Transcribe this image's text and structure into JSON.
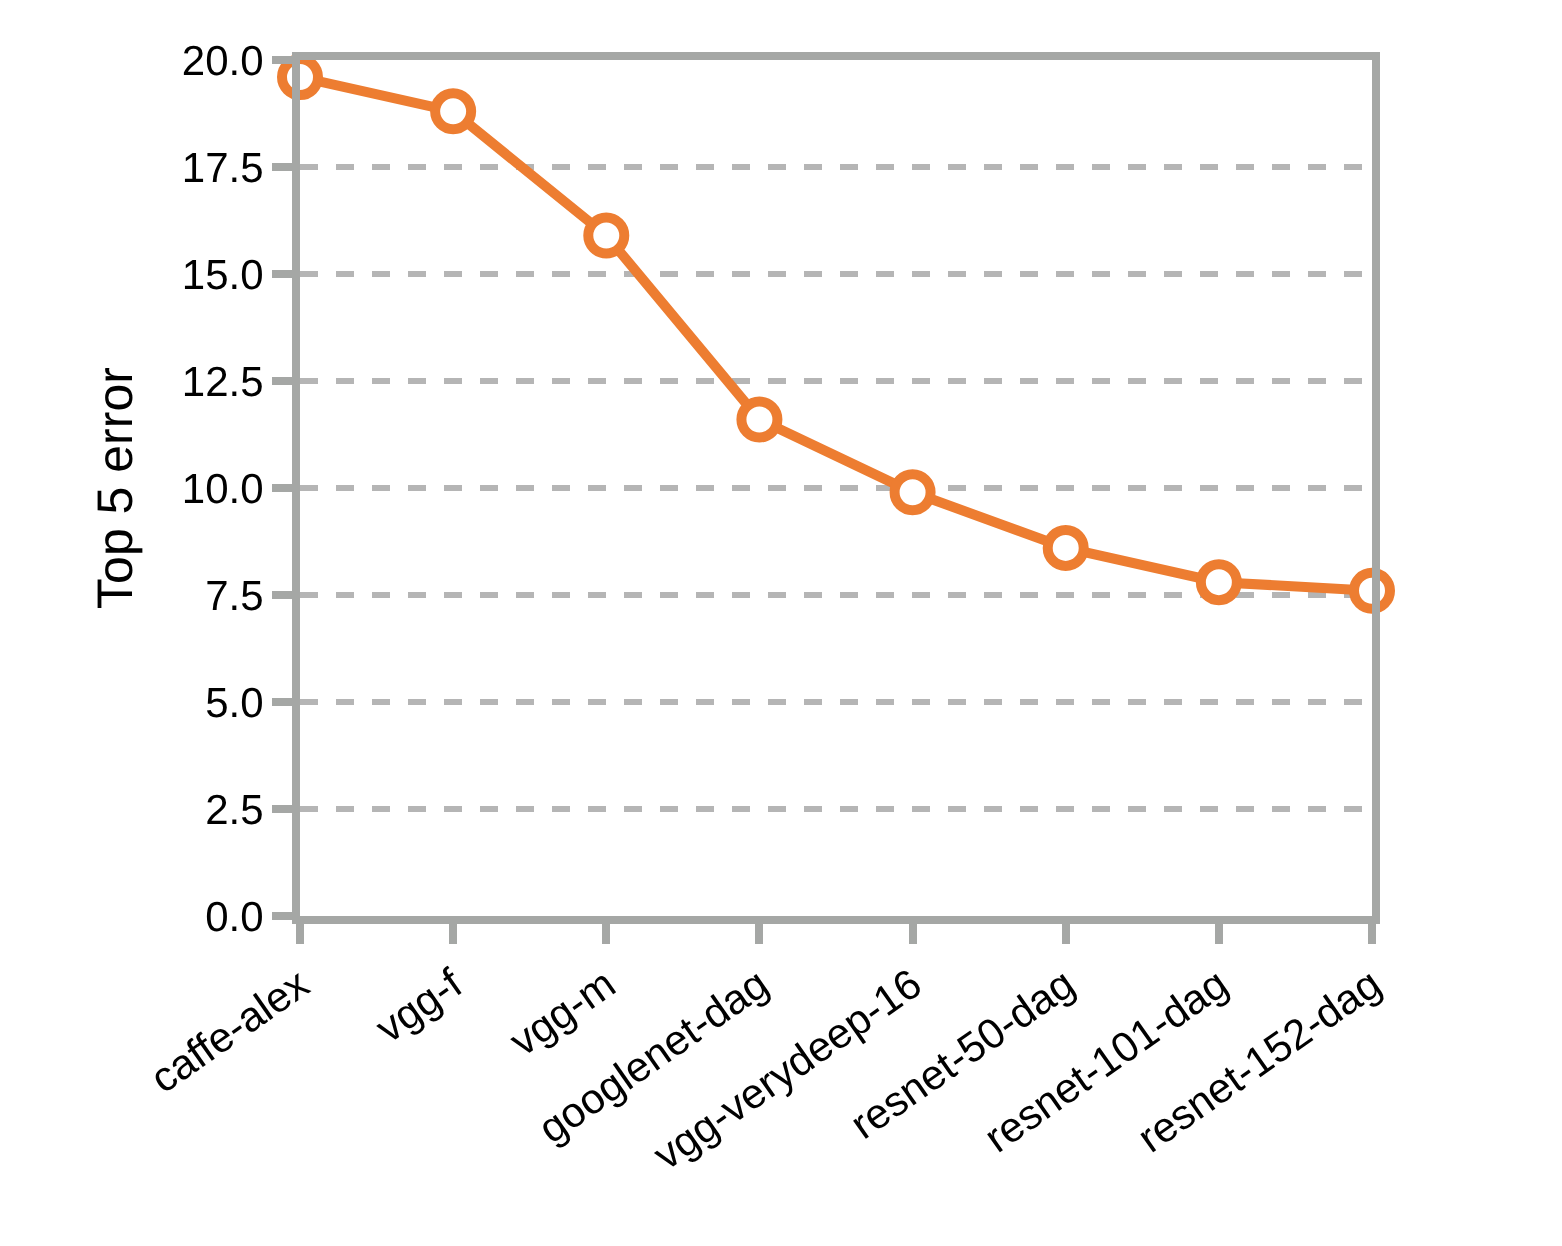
{
  "chart_data": {
    "type": "line",
    "ylabel": "Top 5 error",
    "categories": [
      "caffe-alex",
      "vgg-f",
      "vgg-m",
      "googlenet-dag",
      "vgg-verydeep-16",
      "resnet-50-dag",
      "resnet-101-dag",
      "resnet-152-dag"
    ],
    "series": [
      {
        "color": "#ed7d31",
        "values": [
          19.6,
          18.8,
          15.9,
          11.6,
          9.9,
          8.6,
          7.8,
          7.6
        ]
      }
    ],
    "ylim": [
      0,
      20
    ],
    "yticks": [
      {
        "value": 0,
        "label": "0.0"
      },
      {
        "value": 2.5,
        "label": "2.5"
      },
      {
        "value": 5,
        "label": "5.0"
      },
      {
        "value": 7.5,
        "label": "7.5"
      },
      {
        "value": 10,
        "label": "10.0"
      },
      {
        "value": 12.5,
        "label": "12.5"
      },
      {
        "value": 15,
        "label": "15.0"
      },
      {
        "value": 17.5,
        "label": "17.5"
      },
      {
        "value": 20,
        "label": "20.0"
      }
    ],
    "grid": "y",
    "marker": "circle",
    "line_style": "solid"
  }
}
